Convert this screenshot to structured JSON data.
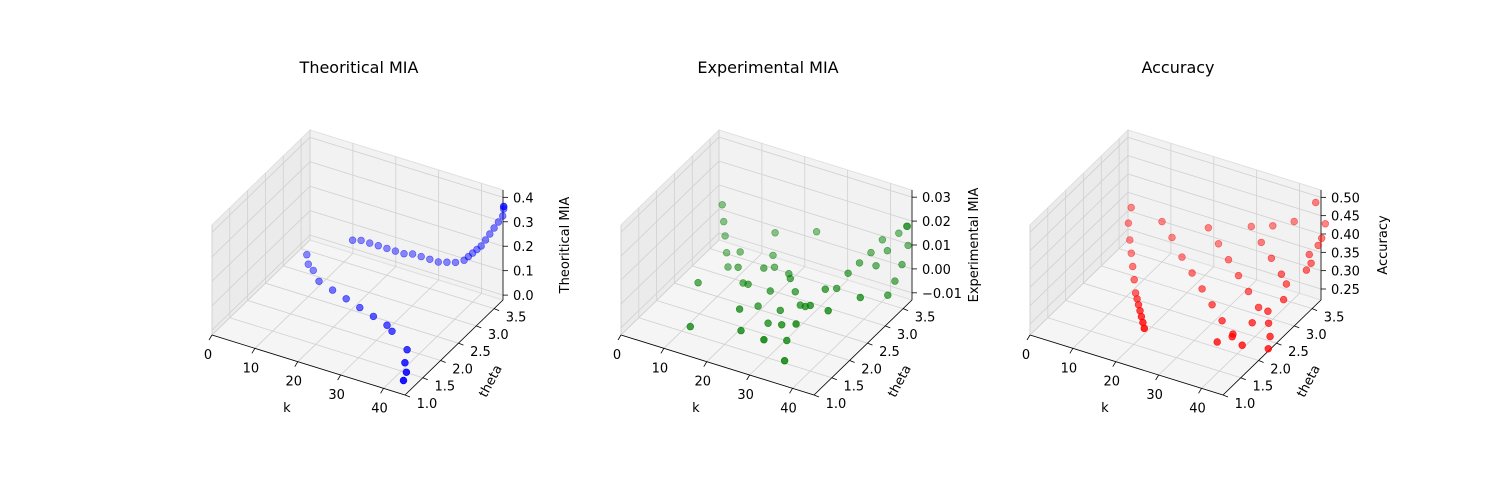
{
  "figure": {
    "background": "#ffffff"
  },
  "chart_data": [
    {
      "type": "scatter3d",
      "title": "Theoritical MIA",
      "xlabel": "k",
      "ylabel": "theta",
      "zlabel": "Theoritical MIA",
      "xlim": [
        0,
        45
      ],
      "ylim": [
        1.0,
        3.75
      ],
      "zlim": [
        -0.02,
        0.43
      ],
      "xticks": [
        "0",
        "10",
        "20",
        "30",
        "40"
      ],
      "yticks": [
        "1.0",
        "1.5",
        "2.0",
        "2.5",
        "3.0",
        "3.5"
      ],
      "zticks": [
        "0.0",
        "0.1",
        "0.2",
        "0.3",
        "0.4"
      ],
      "color": "#0000ff",
      "points": [
        [
          3,
          3.3,
          0.0
        ],
        [
          5,
          3.1,
          0.0
        ],
        [
          7,
          3.0,
          0.0
        ],
        [
          10,
          2.8,
          0.0
        ],
        [
          14,
          2.7,
          0.0
        ],
        [
          18,
          2.6,
          0.0
        ],
        [
          22,
          2.5,
          0.0
        ],
        [
          26,
          2.4,
          0.0
        ],
        [
          30,
          2.3,
          0.0
        ],
        [
          32,
          2.2,
          0.0
        ],
        [
          38,
          1.9,
          0.0
        ],
        [
          40,
          1.6,
          0.0
        ],
        [
          42,
          1.4,
          0.0
        ],
        [
          43,
          1.2,
          0.0
        ],
        [
          12,
          3.5,
          0.08
        ],
        [
          14,
          3.5,
          0.09
        ],
        [
          16,
          3.5,
          0.09
        ],
        [
          18,
          3.5,
          0.09
        ],
        [
          20,
          3.5,
          0.09
        ],
        [
          22,
          3.5,
          0.09
        ],
        [
          24,
          3.5,
          0.09
        ],
        [
          26,
          3.5,
          0.1
        ],
        [
          28,
          3.5,
          0.1
        ],
        [
          30,
          3.5,
          0.1
        ],
        [
          32,
          3.5,
          0.1
        ],
        [
          34,
          3.5,
          0.11
        ],
        [
          36,
          3.5,
          0.12
        ],
        [
          38,
          3.5,
          0.14
        ],
        [
          39,
          3.5,
          0.16
        ],
        [
          40,
          3.5,
          0.18
        ],
        [
          41,
          3.5,
          0.2
        ],
        [
          42,
          3.5,
          0.22
        ],
        [
          43,
          3.5,
          0.25
        ],
        [
          44,
          3.5,
          0.28
        ],
        [
          45,
          3.5,
          0.31
        ],
        [
          46,
          3.5,
          0.34
        ],
        [
          47,
          3.5,
          0.37
        ],
        [
          48,
          3.5,
          0.4
        ],
        [
          49,
          3.5,
          0.41
        ],
        [
          50,
          3.5,
          0.41
        ]
      ]
    },
    {
      "type": "scatter3d",
      "title": "Experimental MIA",
      "xlabel": "k",
      "ylabel": "theta",
      "zlabel": "Experimental MIA",
      "xlim": [
        0,
        45
      ],
      "ylim": [
        1.0,
        3.75
      ],
      "zlim": [
        -0.013,
        0.033
      ],
      "xticks": [
        "0",
        "10",
        "20",
        "30",
        "40"
      ],
      "yticks": [
        "1.0",
        "1.5",
        "2.0",
        "2.5",
        "3.0",
        "3.5"
      ],
      "zticks": [
        "−0.01",
        "0.00",
        "0.01",
        "0.02",
        "0.03"
      ],
      "color": "#008000",
      "points": [
        [
          2,
          3.6,
          0.005
        ],
        [
          4,
          3.4,
          0.002
        ],
        [
          6,
          3.2,
          0.0
        ],
        [
          8,
          3.0,
          -0.003
        ],
        [
          10,
          2.8,
          -0.005
        ],
        [
          12,
          2.9,
          0.001
        ],
        [
          14,
          2.6,
          0.0
        ],
        [
          16,
          2.5,
          -0.004
        ],
        [
          18,
          2.4,
          -0.002
        ],
        [
          20,
          2.6,
          0.003
        ],
        [
          22,
          2.2,
          -0.006
        ],
        [
          24,
          2.3,
          0.0
        ],
        [
          26,
          2.0,
          -0.008
        ],
        [
          28,
          2.1,
          -0.003
        ],
        [
          30,
          1.9,
          -0.005
        ],
        [
          32,
          1.8,
          -0.009
        ],
        [
          34,
          1.5,
          -0.012
        ],
        [
          20,
          2.9,
          -0.001
        ],
        [
          25,
          2.7,
          0.002
        ],
        [
          27,
          2.5,
          0.004
        ],
        [
          29,
          2.4,
          0.001
        ],
        [
          31,
          2.3,
          -0.002
        ],
        [
          33,
          2.2,
          0.0
        ],
        [
          35,
          2.1,
          0.003
        ],
        [
          36,
          2.4,
          0.006
        ],
        [
          37,
          2.6,
          0.004
        ],
        [
          38,
          2.8,
          0.008
        ],
        [
          39,
          3.0,
          0.01
        ],
        [
          40,
          3.2,
          0.012
        ],
        [
          41,
          3.4,
          0.015
        ],
        [
          42,
          3.1,
          0.009
        ],
        [
          43,
          3.3,
          0.013
        ],
        [
          44,
          3.5,
          0.018
        ],
        [
          45,
          3.6,
          0.02
        ],
        [
          46,
          3.5,
          0.022
        ],
        [
          47,
          3.4,
          0.016
        ],
        [
          48,
          3.2,
          0.011
        ],
        [
          49,
          3.0,
          0.007
        ],
        [
          50,
          2.8,
          0.004
        ],
        [
          21,
          1.8,
          -0.002
        ],
        [
          23,
          1.6,
          -0.007
        ],
        [
          30,
          1.4,
          -0.004
        ],
        [
          35,
          1.7,
          0.001
        ],
        [
          40,
          2.0,
          0.005
        ],
        [
          45,
          2.3,
          0.009
        ],
        [
          12,
          1.5,
          -0.01
        ],
        [
          8,
          2.2,
          -0.004
        ],
        [
          16,
          3.4,
          0.004
        ],
        [
          18,
          3.1,
          0.0
        ],
        [
          24,
          3.6,
          0.006
        ]
      ]
    },
    {
      "type": "scatter3d",
      "title": "Accuracy",
      "xlabel": "k",
      "ylabel": "theta",
      "zlabel": "Accuracy",
      "xlim": [
        0,
        45
      ],
      "ylim": [
        1.0,
        3.75
      ],
      "zlim": [
        0.22,
        0.52
      ],
      "xticks": [
        "0",
        "10",
        "20",
        "30",
        "40"
      ],
      "yticks": [
        "1.0",
        "1.5",
        "2.0",
        "2.5",
        "3.0",
        "3.5"
      ],
      "zticks": [
        "0.25",
        "0.30",
        "0.35",
        "0.40",
        "0.45",
        "0.50"
      ],
      "color": "#ff0000",
      "points": [
        [
          2,
          3.6,
          0.33
        ],
        [
          3,
          3.4,
          0.31
        ],
        [
          5,
          3.2,
          0.29
        ],
        [
          7,
          3.0,
          0.28
        ],
        [
          9,
          2.8,
          0.27
        ],
        [
          11,
          2.6,
          0.26
        ],
        [
          13,
          2.4,
          0.25
        ],
        [
          15,
          2.2,
          0.26
        ],
        [
          17,
          2.0,
          0.27
        ],
        [
          19,
          1.8,
          0.28
        ],
        [
          21,
          1.6,
          0.29
        ],
        [
          23,
          1.4,
          0.3
        ],
        [
          25,
          1.2,
          0.31
        ],
        [
          10,
          3.5,
          0.33
        ],
        [
          14,
          3.3,
          0.32
        ],
        [
          18,
          3.1,
          0.3
        ],
        [
          22,
          2.9,
          0.29
        ],
        [
          26,
          2.7,
          0.28
        ],
        [
          30,
          2.5,
          0.27
        ],
        [
          34,
          2.3,
          0.26
        ],
        [
          38,
          2.1,
          0.25
        ],
        [
          42,
          1.9,
          0.26
        ],
        [
          20,
          3.6,
          0.34
        ],
        [
          24,
          3.4,
          0.33
        ],
        [
          28,
          3.2,
          0.32
        ],
        [
          32,
          3.0,
          0.31
        ],
        [
          36,
          2.8,
          0.3
        ],
        [
          40,
          2.6,
          0.29
        ],
        [
          44,
          2.4,
          0.28
        ],
        [
          46,
          2.2,
          0.27
        ],
        [
          48,
          2.0,
          0.26
        ],
        [
          30,
          3.6,
          0.38
        ],
        [
          34,
          3.4,
          0.37
        ],
        [
          38,
          3.2,
          0.36
        ],
        [
          42,
          3.0,
          0.35
        ],
        [
          44,
          2.9,
          0.34
        ],
        [
          46,
          3.3,
          0.39
        ],
        [
          48,
          3.5,
          0.42
        ],
        [
          50,
          3.6,
          0.45
        ],
        [
          47,
          3.1,
          0.37
        ],
        [
          45,
          2.7,
          0.32
        ],
        [
          43,
          2.5,
          0.3
        ],
        [
          41,
          2.3,
          0.28
        ],
        [
          39,
          2.0,
          0.27
        ],
        [
          37,
          1.8,
          0.26
        ],
        [
          49,
          3.4,
          0.41
        ],
        [
          50,
          3.2,
          0.38
        ],
        [
          35,
          3.6,
          0.4
        ],
        [
          40,
          3.6,
          0.43
        ],
        [
          45,
          3.6,
          0.5
        ]
      ]
    }
  ]
}
